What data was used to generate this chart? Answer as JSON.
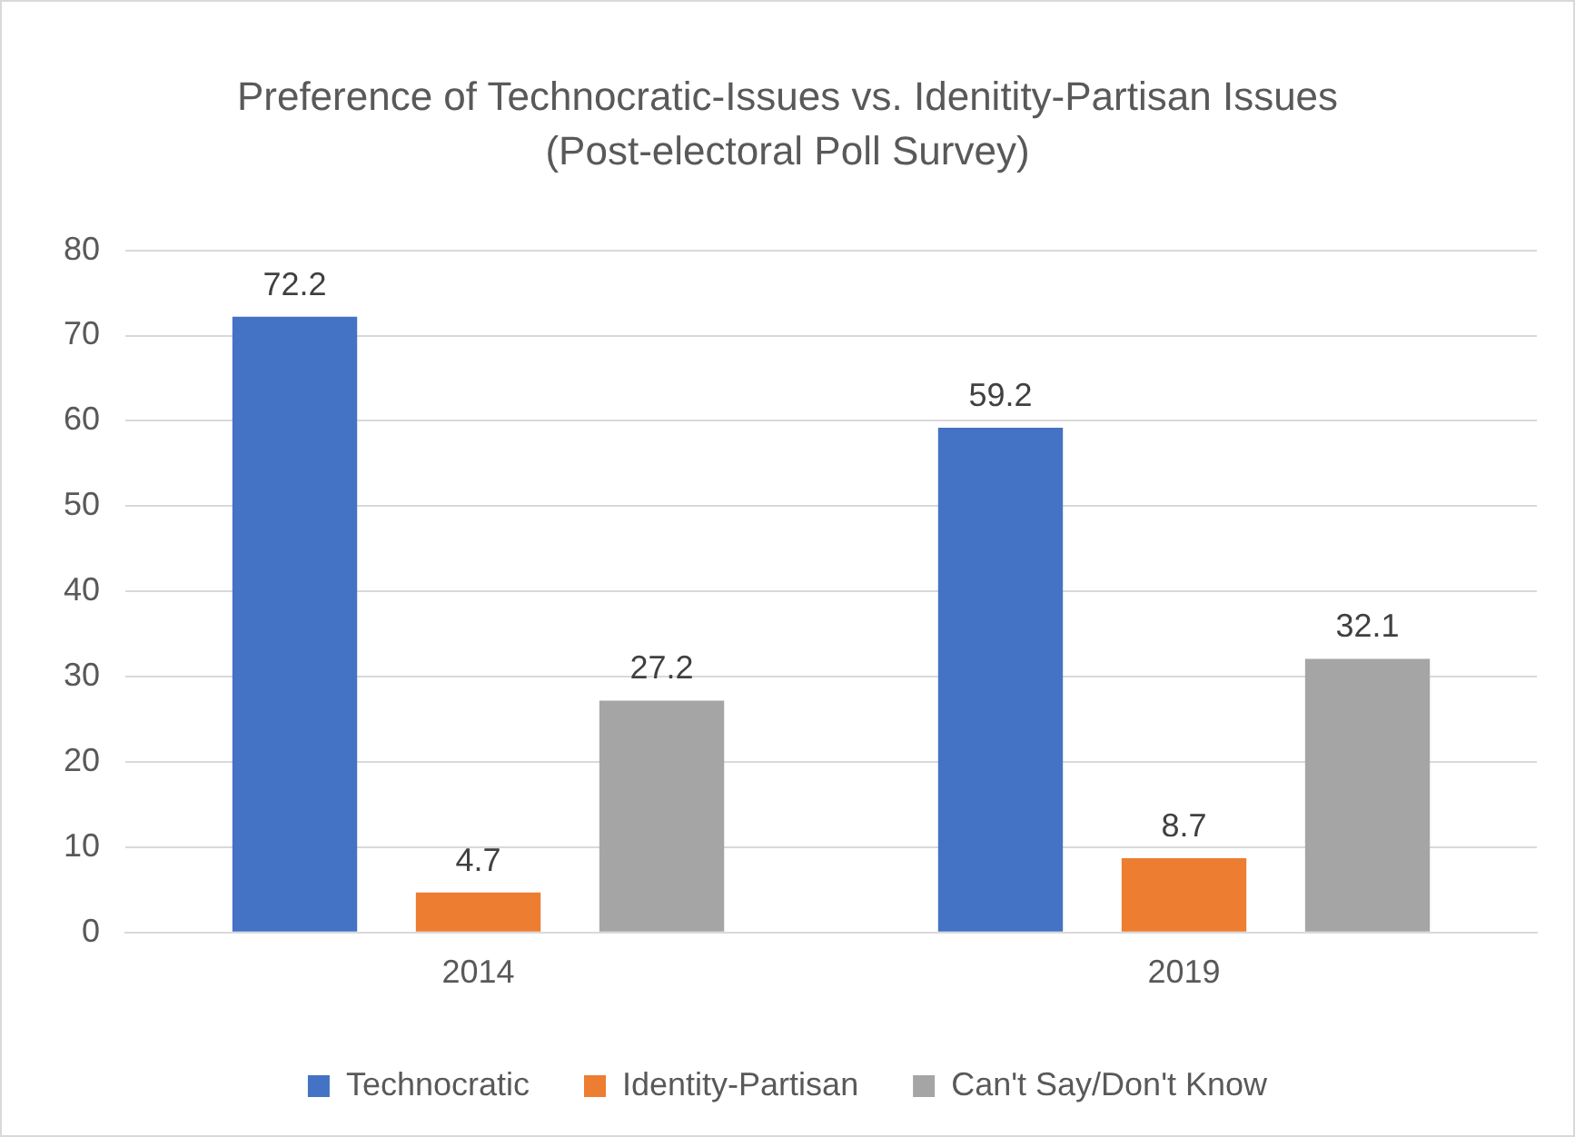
{
  "chart_data": {
    "type": "bar",
    "title": "Preference of Technocratic-Issues vs. Idenitity-Partisan Issues",
    "subtitle": "(Post-electoral Poll Survey)",
    "categories": [
      "2014",
      "2019"
    ],
    "series": [
      {
        "name": "Technocratic",
        "color": "#4472c4",
        "values": [
          72.2,
          59.2
        ]
      },
      {
        "name": "Identity-Partisan",
        "color": "#ed7d31",
        "values": [
          4.7,
          8.7
        ]
      },
      {
        "name": "Can't Say/Don't Know",
        "color": "#a5a5a5",
        "values": [
          27.2,
          32.1
        ]
      }
    ],
    "ylim": [
      0,
      80
    ],
    "yticks": [
      0,
      10,
      20,
      30,
      40,
      50,
      60,
      70,
      80
    ],
    "grid": "y",
    "legend": "bottom",
    "data_labels": true
  }
}
